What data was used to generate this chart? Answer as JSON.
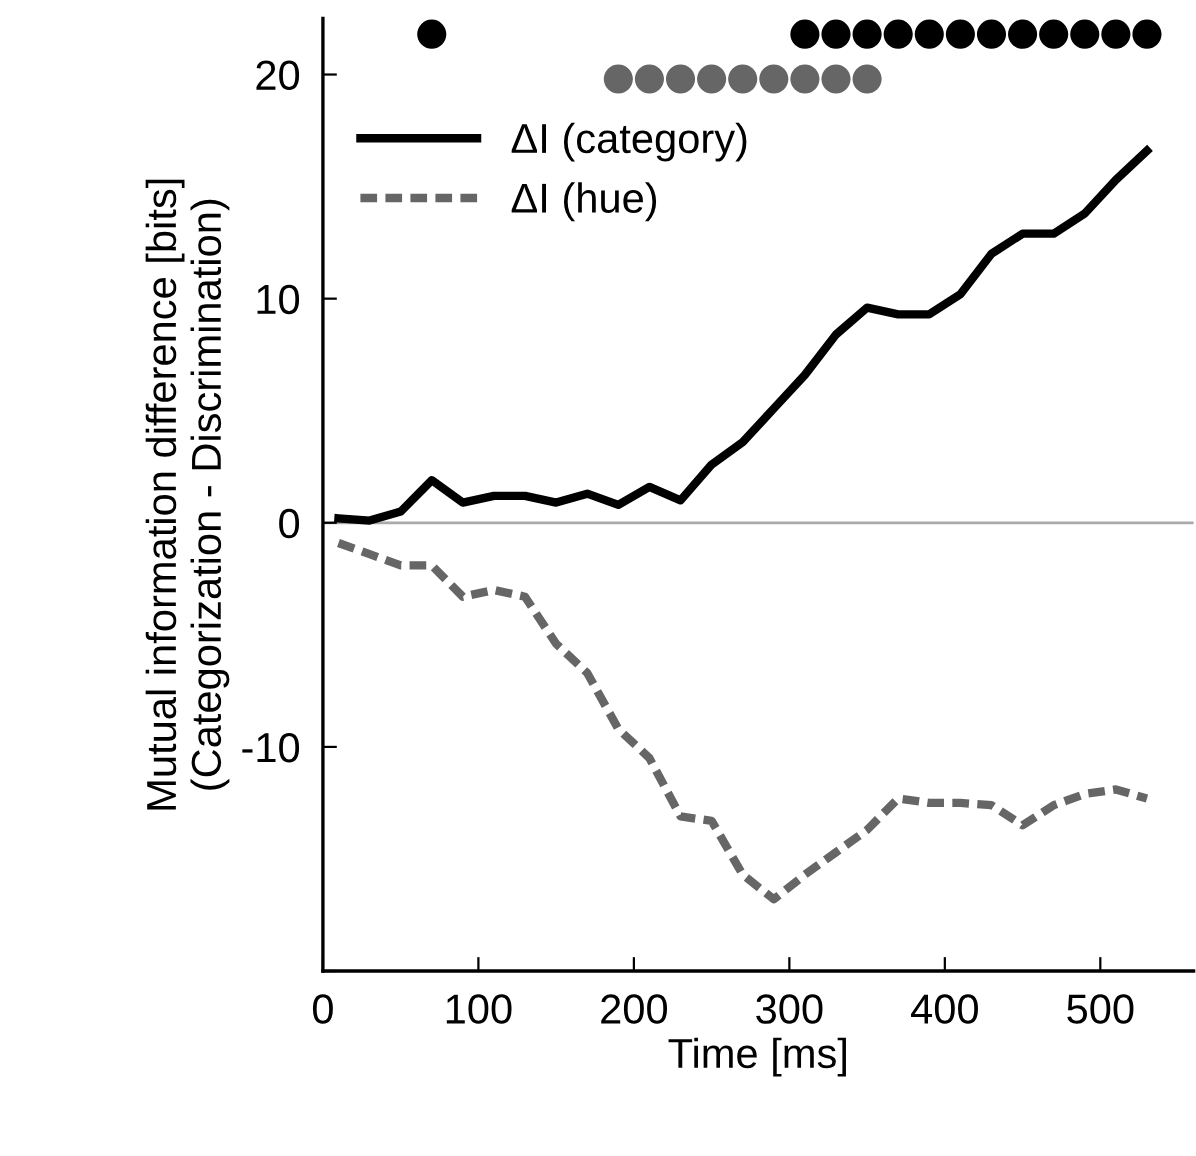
{
  "chart_data": {
    "type": "line",
    "xlabel": "Time [ms]",
    "ylabel": "Mutual information difference [bits]\n(Categorization - Discrimination)",
    "x": [
      10,
      30,
      50,
      70,
      90,
      110,
      130,
      150,
      170,
      190,
      210,
      230,
      250,
      270,
      290,
      310,
      330,
      350,
      370,
      390,
      410,
      430,
      450,
      470,
      490,
      510,
      530
    ],
    "series": [
      {
        "name": "ΔI (category)",
        "color": "#000000",
        "line_style": "solid",
        "values": [
          0.2,
          0.1,
          0.5,
          1.9,
          0.9,
          1.2,
          1.2,
          0.9,
          1.3,
          0.8,
          1.6,
          1.0,
          2.6,
          3.6,
          5.1,
          6.6,
          8.4,
          9.6,
          9.3,
          9.3,
          10.2,
          12.0,
          12.9,
          12.9,
          13.8,
          15.3,
          16.6
        ]
      },
      {
        "name": "ΔI (hue)",
        "color": "#666666",
        "line_style": "dashed",
        "values": [
          -0.9,
          -1.4,
          -1.9,
          -1.9,
          -3.3,
          -3.0,
          -3.3,
          -5.4,
          -6.7,
          -9.2,
          -10.5,
          -13.1,
          -13.3,
          -15.7,
          -16.8,
          -15.7,
          -14.7,
          -13.7,
          -12.3,
          -12.5,
          -12.5,
          -12.6,
          -13.5,
          -12.6,
          -12.1,
          -11.9,
          -12.3
        ]
      },
      {
        "type": "scatter",
        "color": "#000000",
        "x": [
          70,
          310,
          330,
          350,
          370,
          390,
          410,
          430,
          450,
          470,
          490,
          510,
          530
        ],
        "values": [
          21.8,
          21.8,
          21.8,
          21.8,
          21.8,
          21.8,
          21.8,
          21.8,
          21.8,
          21.8,
          21.8,
          21.8,
          21.8
        ]
      },
      {
        "type": "scatter",
        "color": "#666666",
        "x": [
          190,
          210,
          230,
          250,
          270,
          290,
          310,
          330,
          350
        ],
        "values": [
          19.8,
          19.8,
          19.8,
          19.8,
          19.8,
          19.8,
          19.8,
          19.8,
          19.8
        ]
      }
    ],
    "ref_lines": [
      {
        "axis": "y",
        "value": 0,
        "color": "#aaaaaa"
      }
    ],
    "xlim": [
      0,
      560
    ],
    "ylim": [
      -20,
      22.5
    ],
    "xticks": [
      0,
      100,
      200,
      300,
      400,
      500
    ],
    "yticks": [
      {
        "value": -20,
        "label": null
      },
      -10,
      0,
      10,
      20
    ],
    "legend": "top left",
    "grid": false
  }
}
